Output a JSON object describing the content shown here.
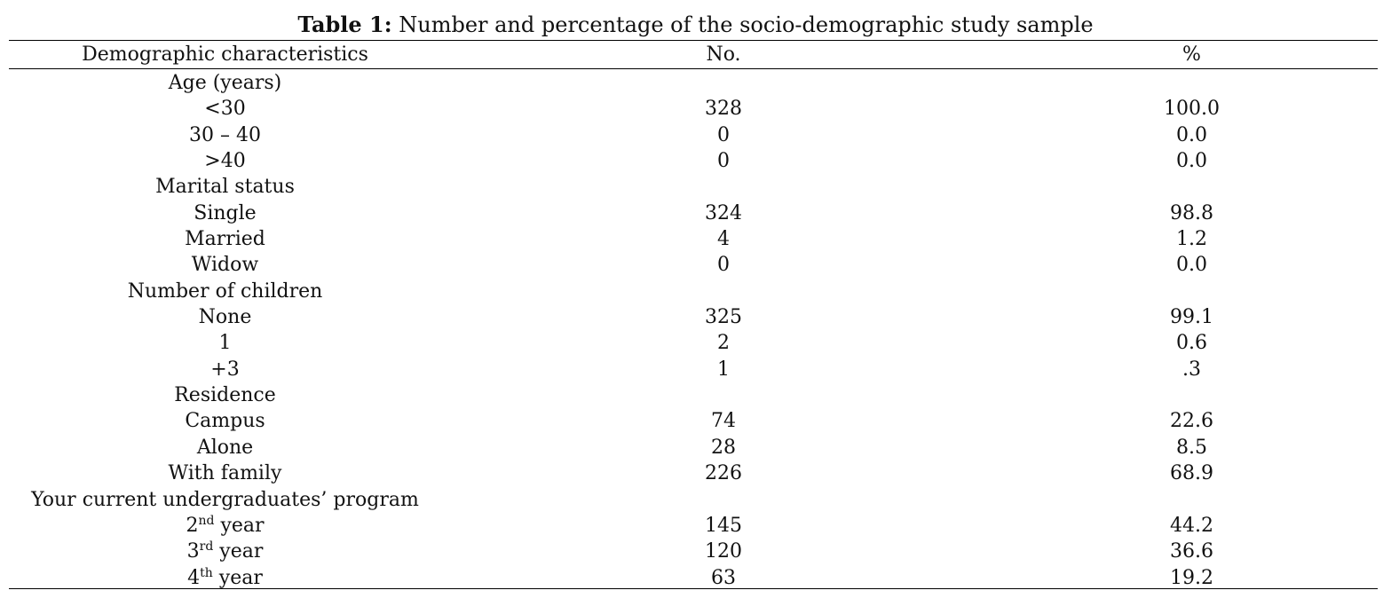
{
  "caption": {
    "label": "Table 1:",
    "text": " Number and percentage of the socio-demographic study sample"
  },
  "header": {
    "col1": "Demographic characteristics",
    "col2": "No.",
    "col3": "%"
  },
  "rows": [
    {
      "label": "Age (years)",
      "no": "",
      "pct": "",
      "kind": "group"
    },
    {
      "label": "<30",
      "no": "328",
      "pct": "100.0",
      "kind": "item"
    },
    {
      "label": "30 – 40",
      "no": "0",
      "pct": "0.0",
      "kind": "item"
    },
    {
      "label": ">40",
      "no": "0",
      "pct": "0.0",
      "kind": "item"
    },
    {
      "label": "Marital status",
      "no": "",
      "pct": "",
      "kind": "group"
    },
    {
      "label": "Single",
      "no": "324",
      "pct": "98.8",
      "kind": "item"
    },
    {
      "label": "Married",
      "no": "4",
      "pct": "1.2",
      "kind": "item"
    },
    {
      "label": "Widow",
      "no": "0",
      "pct": "0.0",
      "kind": "item"
    },
    {
      "label": "Number of children",
      "no": "",
      "pct": "",
      "kind": "group"
    },
    {
      "label": "None",
      "no": "325",
      "pct": "99.1",
      "kind": "item"
    },
    {
      "label": "1",
      "no": "2",
      "pct": "0.6",
      "kind": "item"
    },
    {
      "label": "+3",
      "no": "1",
      "pct": ".3",
      "kind": "item"
    },
    {
      "label": "Residence",
      "no": "",
      "pct": "",
      "kind": "group"
    },
    {
      "label": "Campus",
      "no": "74",
      "pct": "22.6",
      "kind": "item"
    },
    {
      "label": "Alone",
      "no": "28",
      "pct": "8.5",
      "kind": "item"
    },
    {
      "label": "With family",
      "no": "226",
      "pct": "68.9",
      "kind": "item"
    },
    {
      "label": "Your current undergraduates’ program",
      "no": "",
      "pct": "",
      "kind": "group"
    },
    {
      "label": "2",
      "sup": "nd",
      "suffix": " year",
      "no": "145",
      "pct": "44.2",
      "kind": "item"
    },
    {
      "label": "3",
      "sup": "rd",
      "suffix": " year",
      "no": "120",
      "pct": "36.6",
      "kind": "item"
    },
    {
      "label": "4",
      "sup": "th",
      "suffix": " year",
      "no": "63",
      "pct": "19.2",
      "kind": "item"
    }
  ]
}
